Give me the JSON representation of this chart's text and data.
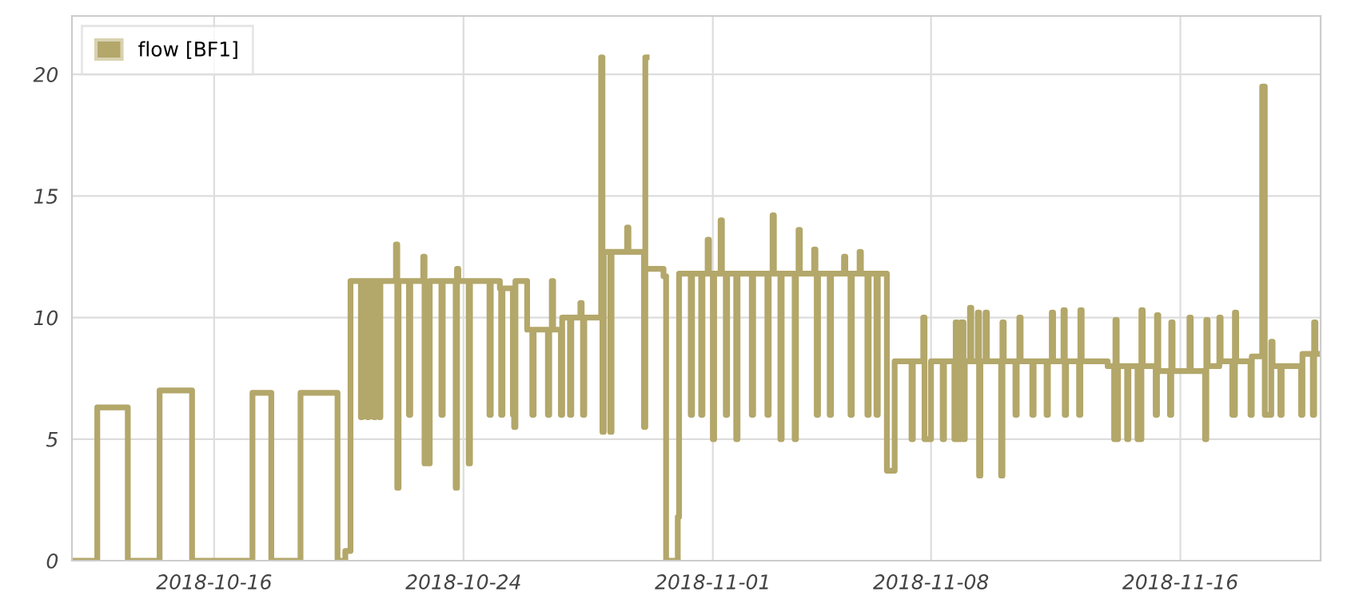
{
  "chart_data": {
    "type": "step",
    "xlim": [
      "2018-10-11T10:30",
      "2018-11-20T12:00"
    ],
    "ylim": [
      0,
      22.4
    ],
    "xticks": [
      "2018-10-16",
      "2018-10-24",
      "2018-11-01",
      "2018-11-08",
      "2018-11-16"
    ],
    "yticks": [
      0,
      5,
      10,
      15,
      20
    ],
    "grid": true,
    "legend": "top left",
    "marker": "none",
    "line_style": "solid",
    "series": [
      {
        "name": "flow [BF1]",
        "color": "#b3a76a",
        "x": [
          "2018-10-11T10:30",
          "2018-10-12T06:00",
          "2018-10-13T05:30",
          "2018-10-14T06:00",
          "2018-10-15T07:00",
          "2018-10-17T05:30",
          "2018-10-17T20:00",
          "2018-10-18T18:30",
          "2018-10-19T23:00",
          "2018-10-20T05:00",
          "2018-10-20T09:00",
          "2018-10-20T17:00",
          "2018-10-20T18:00",
          "2018-10-20T22:00",
          "2018-10-20T23:00",
          "2018-10-21T03:00",
          "2018-10-21T04:00",
          "2018-10-21T07:00",
          "2018-10-21T08:00",
          "2018-10-21T20:00",
          "2018-10-21T21:00",
          "2018-10-21T22:00",
          "2018-10-22T06:00",
          "2018-10-22T07:00",
          "2018-10-22T17:00",
          "2018-10-22T18:00",
          "2018-10-22T22:00",
          "2018-10-23T07:00",
          "2018-10-23T08:00",
          "2018-10-23T18:00",
          "2018-10-23T19:00",
          "2018-10-23T20:00",
          "2018-10-24T04:00",
          "2018-10-24T05:00",
          "2018-10-24T20:00",
          "2018-10-24T21:00",
          "2018-10-25T04:00",
          "2018-10-25T05:00",
          "2018-10-25T06:00",
          "2018-10-25T14:00",
          "2018-10-25T15:00",
          "2018-10-25T16:00",
          "2018-10-26T01:00",
          "2018-10-26T05:00",
          "2018-10-26T06:00",
          "2018-10-26T17:00",
          "2018-10-26T18:00",
          "2018-10-26T20:00",
          "2018-10-26T21:00",
          "2018-10-27T03:00",
          "2018-10-27T04:00",
          "2018-10-27T10:00",
          "2018-10-27T11:00",
          "2018-10-27T18:00",
          "2018-10-27T19:00",
          "2018-10-27T20:00",
          "2018-10-27T21:00",
          "2018-10-28T10:00",
          "2018-10-28T11:00",
          "2018-10-28T12:00",
          "2018-10-28T17:00",
          "2018-10-28T18:00",
          "2018-10-29T06:00",
          "2018-10-29T07:00",
          "2018-10-29T19:00",
          "2018-10-29T20:00",
          "2018-10-29T21:00",
          "2018-10-29T22:00",
          "2018-10-30T06:00",
          "2018-10-30T07:00",
          "2018-10-30T10:00",
          "2018-10-30T12:00",
          "2018-10-30T21:00",
          "2018-10-30T22:00",
          "2018-10-31T07:00",
          "2018-10-31T08:00",
          "2018-10-31T15:00",
          "2018-10-31T16:00",
          "2018-10-31T20:00",
          "2018-10-31T21:00",
          "2018-11-01T00:00",
          "2018-11-01T01:00",
          "2018-11-01T06:00",
          "2018-11-01T07:00",
          "2018-11-01T10:00",
          "2018-11-01T11:00",
          "2018-11-01T18:00",
          "2018-11-01T19:00",
          "2018-11-02T06:00",
          "2018-11-02T07:00",
          "2018-11-02T18:00",
          "2018-11-02T19:00",
          "2018-11-02T22:00",
          "2018-11-02T23:00",
          "2018-11-03T04:00",
          "2018-11-03T05:00",
          "2018-11-03T15:00",
          "2018-11-03T16:00",
          "2018-11-03T18:00",
          "2018-11-03T19:00",
          "2018-11-04T06:00",
          "2018-11-04T07:00",
          "2018-11-04T08:00",
          "2018-11-04T09:00",
          "2018-11-04T18:00",
          "2018-11-04T19:00",
          "2018-11-05T05:00",
          "2018-11-05T06:00",
          "2018-11-05T10:00",
          "2018-11-05T11:00",
          "2018-11-05T17:00",
          "2018-11-05T18:00",
          "2018-11-05T23:00",
          "2018-11-06T00:00",
          "2018-11-06T06:00",
          "2018-11-06T07:00",
          "2018-11-06T14:00",
          "2018-11-06T20:00",
          "2018-11-07T09:00",
          "2018-11-07T10:00",
          "2018-11-07T18:00",
          "2018-11-07T19:00",
          "2018-11-08T00:00",
          "2018-11-08T09:00",
          "2018-11-08T10:00",
          "2018-11-08T18:00",
          "2018-11-08T19:00",
          "2018-11-08T20:00",
          "2018-11-08T23:00",
          "2018-11-09T01:00",
          "2018-11-09T02:00",
          "2018-11-09T06:00",
          "2018-11-09T07:00",
          "2018-11-09T12:00",
          "2018-11-09T13:00",
          "2018-11-09T14:00",
          "2018-11-09T18:00",
          "2018-11-09T19:00",
          "2018-11-10T06:00",
          "2018-11-10T07:00",
          "2018-11-10T08:00",
          "2018-11-10T17:00",
          "2018-11-10T18:00",
          "2018-11-10T20:00",
          "2018-11-10T21:00",
          "2018-11-11T06:00",
          "2018-11-11T07:00",
          "2018-11-11T17:00",
          "2018-11-11T18:00",
          "2018-11-11T21:00",
          "2018-11-11T22:00",
          "2018-11-12T06:00",
          "2018-11-12T07:00",
          "2018-11-12T08:00",
          "2018-11-12T18:00",
          "2018-11-12T19:00",
          "2018-11-12T20:00",
          "2018-11-13T16:00",
          "2018-11-13T21:00",
          "2018-11-13T22:00",
          "2018-11-13T23:00",
          "2018-11-14T00:00",
          "2018-11-14T07:00",
          "2018-11-14T08:00",
          "2018-11-14T15:00",
          "2018-11-14T18:00",
          "2018-11-14T19:00",
          "2018-11-15T05:00",
          "2018-11-15T06:00",
          "2018-11-15T07:00",
          "2018-11-15T16:00",
          "2018-11-15T17:00",
          "2018-11-15T18:00",
          "2018-11-16T07:00",
          "2018-11-16T08:00",
          "2018-11-16T19:00",
          "2018-11-16T20:00",
          "2018-11-16T21:00",
          "2018-11-17T06:00",
          "2018-11-17T07:00",
          "2018-11-17T16:00",
          "2018-11-17T18:00",
          "2018-11-17T19:00",
          "2018-11-18T06:00",
          "2018-11-18T07:00",
          "2018-11-18T15:00",
          "2018-11-18T17:00",
          "2018-11-18T22:00",
          "2018-11-18T23:00",
          "2018-11-19T05:00",
          "2018-11-19T06:00",
          "2018-11-19T21:00",
          "2018-11-19T22:00",
          "2018-11-20T06:00",
          "2018-11-20T07:00",
          "2018-11-20T08:00",
          "2018-11-20T12:00"
        ],
        "values": [
          0,
          6.3,
          0,
          7.0,
          0,
          6.9,
          0,
          6.9,
          0,
          0.4,
          11.5,
          5.9,
          11.5,
          5.9,
          11.5,
          5.9,
          11.5,
          5.9,
          11.5,
          13,
          3,
          11.5,
          6,
          11.5,
          12.5,
          4,
          11.5,
          6,
          11.5,
          3,
          12,
          11.5,
          4,
          11.5,
          6,
          11.5,
          11.2,
          6,
          11.2,
          6,
          5.5,
          11.5,
          9.5,
          6,
          9.5,
          6,
          9.5,
          11.5,
          9.5,
          6,
          10,
          6,
          10,
          10.6,
          10,
          6,
          10,
          20.7,
          5.3,
          12.7,
          5.3,
          12.7,
          13.7,
          12.7,
          5.5,
          20.7,
          null,
          12,
          null,
          12,
          11.7,
          0,
          1.8,
          11.8,
          6,
          11.8,
          6,
          11.8,
          13.2,
          11.8,
          5,
          11.8,
          14,
          11.8,
          6,
          11.8,
          5,
          11.8,
          6,
          11.8,
          6,
          11.8,
          14.2,
          11.8,
          5,
          11.8,
          5,
          11.8,
          13.6,
          11.8,
          12.8,
          11.8,
          6,
          11.8,
          6,
          11.8,
          12.5,
          11.8,
          6,
          11.8,
          12.7,
          11.8,
          6,
          11.8,
          6,
          11.8,
          3.7,
          8.2,
          5,
          8.2,
          10,
          5,
          8.2,
          5,
          8.2,
          5,
          9.8,
          5,
          9.8,
          5,
          8.2,
          10.4,
          8.2,
          10.2,
          3.5,
          8.2,
          10.2,
          8.2,
          3.5,
          9.8,
          8.2,
          6,
          8.2,
          10,
          8.2,
          6,
          8.2,
          6,
          8.2,
          10.2,
          8.2,
          10.3,
          6,
          8.2,
          6,
          10.3,
          8.2,
          8.0,
          5,
          9.9,
          5,
          8,
          5,
          8,
          5,
          10.3,
          8,
          6,
          10.1,
          7.8,
          6,
          9.8,
          7.8,
          10,
          7.8,
          5,
          9.9,
          8,
          10,
          8.2,
          6,
          10.2,
          8.2,
          6,
          8.4,
          19.5,
          6,
          9,
          8,
          6,
          8,
          6,
          8.5,
          6,
          9.8,
          8.5,
          8.5
        ]
      }
    ]
  }
}
